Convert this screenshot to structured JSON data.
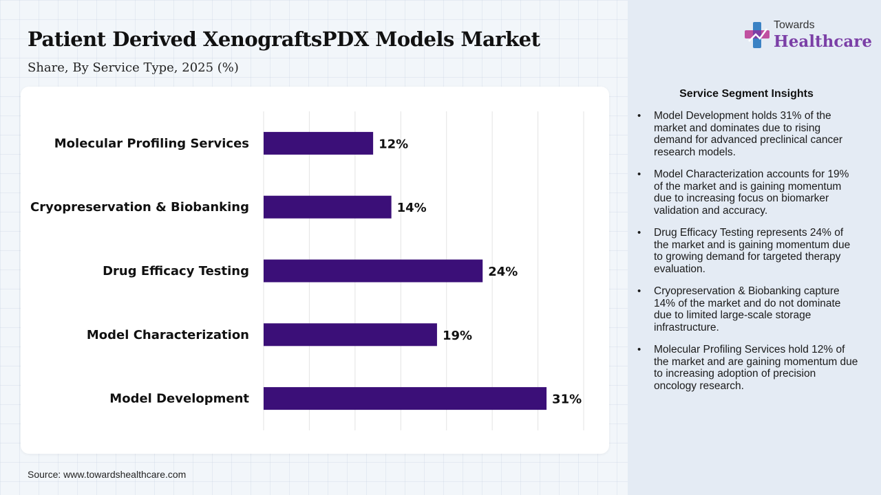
{
  "header": {
    "title": "Patient Derived XenograftsPDX Models Market",
    "subtitle": "Share, By Service Type, 2025 (%)"
  },
  "logo": {
    "top_text": "Towards",
    "main_text": "Healthcare",
    "icon": "medical-cross-icon"
  },
  "source": "Source: www.towardshealthcare.com",
  "colors": {
    "bar": "#3b0f78",
    "logo_purple": "#7b3fa6",
    "logo_cross_blue": "#3b82c4",
    "logo_cross_pink": "#c050a0"
  },
  "insights": {
    "title": "Service Segment Insights",
    "items": [
      "Model Development holds 31% of the market and dominates due to rising demand for advanced preclinical cancer research models.",
      "Model Characterization accounts for 19% of the market and is gaining momentum due to increasing focus on biomarker validation and accuracy.",
      "Drug Efficacy Testing represents 24% of the market and is gaining momentum due to growing demand for targeted therapy evaluation.",
      "Cryopreservation & Biobanking capture 14% of the market and do not dominate due to limited large-scale storage infrastructure.",
      "Molecular Profiling Services hold 12% of the market and are gaining momentum due to increasing adoption of precision oncology research."
    ]
  },
  "chart_data": {
    "type": "bar",
    "orientation": "horizontal",
    "categories": [
      "Molecular Profiling Services",
      "Cryopreservation & Biobanking",
      "Drug Efficacy Testing",
      "Model Characterization",
      "Model Development"
    ],
    "values": [
      12,
      14,
      24,
      19,
      31
    ],
    "value_labels": [
      "12%",
      "14%",
      "24%",
      "19%",
      "31%"
    ],
    "title": "",
    "xlabel": "",
    "ylabel": "",
    "xlim": [
      0,
      35
    ],
    "grid": true,
    "legend": "none"
  }
}
